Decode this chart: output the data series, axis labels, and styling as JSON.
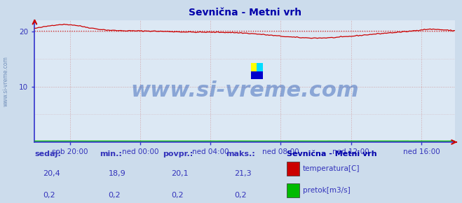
{
  "title": "Sevnična - Metni vrh",
  "bg_color": "#ccdcec",
  "plot_bg_color": "#dce8f4",
  "grid_color": "#cc8888",
  "ylim": [
    0,
    22
  ],
  "yticks": [
    10,
    20
  ],
  "ylabel_color": "#3333bb",
  "xlabel_color": "#3333bb",
  "title_color": "#0000aa",
  "xtick_labels": [
    "sob 20:00",
    "ned 00:00",
    "ned 04:00",
    "ned 08:00",
    "ned 12:00",
    "ned 16:00"
  ],
  "n_points": 288,
  "temp_color": "#cc0000",
  "flow_color": "#00bb00",
  "avg_line_color": "#cc0000",
  "avg_value": 20.1,
  "spine_color": "#3333cc",
  "watermark": "www.si-vreme.com",
  "watermark_color": "#1144aa",
  "watermark_alpha": 0.4,
  "watermark_fontsize": 22,
  "legend_title": "Sevnična - Metni vrh",
  "legend_color": "#0000aa",
  "bottom_labels": [
    "sedaj:",
    "min.:",
    "povpr.:",
    "maks.:"
  ],
  "bottom_vals_temp": [
    "20,4",
    "18,9",
    "20,1",
    "21,3"
  ],
  "bottom_vals_flow": [
    "0,2",
    "0,2",
    "0,2",
    "0,2"
  ],
  "font_color": "#3333bb",
  "side_watermark": "www.si-vreme.com"
}
